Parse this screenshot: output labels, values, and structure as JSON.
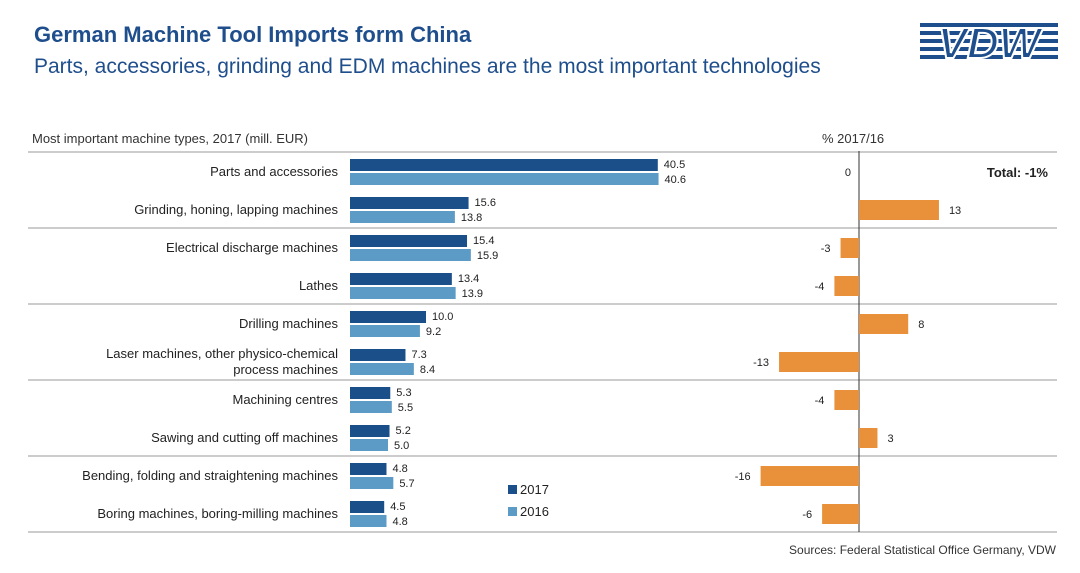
{
  "header": {
    "title": "German Machine Tool Imports form China",
    "subtitle": "Parts, accessories, grinding and EDM machines are the most important technologies",
    "logo_text": "VDW"
  },
  "left_section_label": "Most important machine types, 2017 (mill. EUR)",
  "right_section_label": "% 2017/16",
  "total_label": "Total: -1%",
  "source": "Sources: Federal Statistical Office Germany, VDW",
  "colors": {
    "title": "#1f4e8c",
    "series_2017": "#1a4f8a",
    "series_2016": "#5b9bc5",
    "change": "#e8913a",
    "divider": "#9a9a9a",
    "axis": "#333333"
  },
  "chart_data": [
    {
      "type": "bar",
      "orientation": "horizontal",
      "title": "Most important machine types, 2017 (mill. EUR)",
      "categories": [
        "Parts and accessories",
        "Grinding, honing, lapping machines",
        "Electrical discharge machines",
        "Lathes",
        "Drilling machines",
        "Laser machines, other physico-chemical process machines",
        "Machining centres",
        "Sawing and cutting off machines",
        "Bending, folding and straightening machines",
        "Boring machines, boring-milling machines"
      ],
      "series": [
        {
          "name": "2017",
          "values": [
            40.5,
            15.6,
            15.4,
            13.4,
            10.0,
            7.3,
            5.3,
            5.2,
            4.8,
            4.5
          ]
        },
        {
          "name": "2016",
          "values": [
            40.6,
            13.8,
            15.9,
            13.9,
            9.2,
            8.4,
            5.5,
            5.0,
            5.7,
            4.8
          ]
        }
      ],
      "legend": [
        "2017",
        "2016"
      ],
      "xlim": [
        0,
        45
      ]
    },
    {
      "type": "bar",
      "orientation": "horizontal",
      "title": "% 2017/16",
      "categories": [
        "Parts and accessories",
        "Grinding, honing, lapping machines",
        "Electrical discharge machines",
        "Lathes",
        "Drilling machines",
        "Laser machines, other physico-chemical process machines",
        "Machining centres",
        "Sawing and cutting off machines",
        "Bending, folding and straightening machines",
        "Boring machines, boring-milling machines"
      ],
      "values": [
        0,
        13,
        -3,
        -4,
        8,
        -13,
        -4,
        3,
        -16,
        -6
      ],
      "total": "Total: -1%",
      "xlim": [
        -20,
        20
      ]
    }
  ]
}
